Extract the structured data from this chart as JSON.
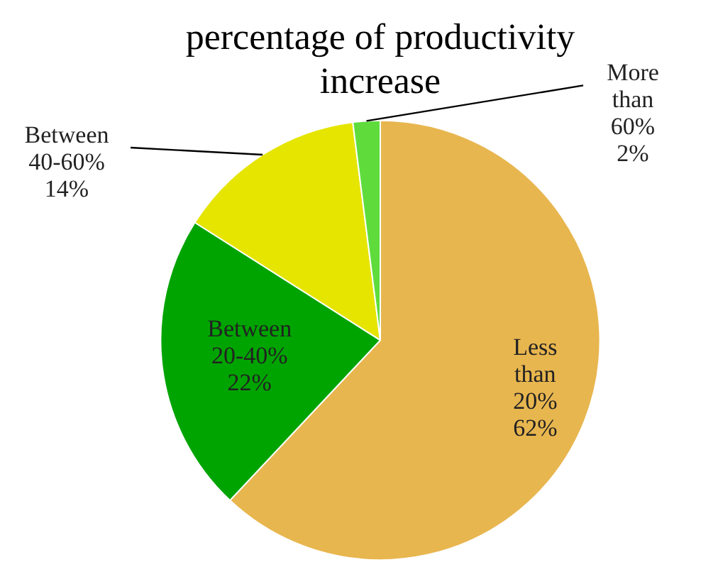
{
  "chart_data": {
    "type": "pie",
    "title": "percentage of productivity increase",
    "categories": [
      "Less than 20%",
      "Between 20-40%",
      "Between 40-60%",
      "More than 60%"
    ],
    "values": [
      62,
      22,
      14,
      2
    ],
    "value_labels": [
      "62%",
      "22%",
      "14%",
      "2%"
    ],
    "colors": [
      "#e8b64f",
      "#00a400",
      "#e5e500",
      "#5fdc3c"
    ],
    "legend": false
  }
}
